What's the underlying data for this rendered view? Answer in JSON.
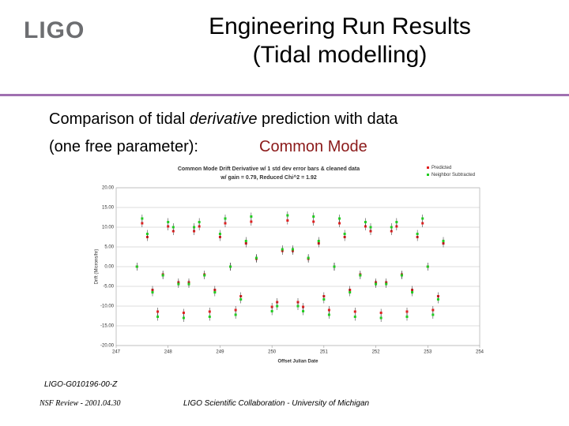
{
  "header": {
    "logo": "LIGO",
    "title": [
      "Engineering Run Results",
      "(Tidal modelling)"
    ]
  },
  "body": {
    "line1": [
      "Comparison of tidal ",
      "derivative",
      " prediction with data"
    ],
    "line2": "(one free parameter):",
    "highlight": "Common Mode"
  },
  "chart_data": {
    "type": "scatter",
    "title": [
      "Common Mode Drift Derivative w/ 1 std dev error bars & cleaned data",
      "w/ gain = 0.79, Reduced Chi^2 = 1.92"
    ],
    "xlabel": "Offset Julian Date",
    "ylabel": "Drift (Microns/hr)",
    "xlim": [
      247,
      254
    ],
    "xticks": [
      247,
      248,
      249,
      250,
      251,
      252,
      253,
      254
    ],
    "ylim": [
      -20,
      20
    ],
    "yticks": [
      {
        "value": -20,
        "label": "-20.00"
      },
      {
        "value": -15,
        "label": "-15.00"
      },
      {
        "value": -10,
        "label": "-10.00"
      },
      {
        "value": -5,
        "label": "-5.00"
      },
      {
        "value": 0,
        "label": "0.00"
      },
      {
        "value": 5,
        "label": "5.00"
      },
      {
        "value": 10,
        "label": "10.00"
      },
      {
        "value": 15,
        "label": "15.00"
      },
      {
        "value": 20,
        "label": "20.00"
      }
    ],
    "legend": "upper right",
    "x": [
      247.4,
      247.5,
      247.6,
      247.7,
      247.8,
      247.9,
      248.0,
      248.1,
      248.2,
      248.3,
      248.4,
      248.5,
      248.6,
      248.7,
      248.8,
      248.9,
      249.0,
      249.1,
      249.2,
      249.3,
      249.4,
      249.5,
      249.6,
      249.7,
      250.0,
      250.1,
      250.2,
      250.3,
      250.4,
      250.5,
      250.6,
      250.7,
      250.8,
      250.9,
      251.0,
      251.1,
      251.2,
      251.3,
      251.4,
      251.5,
      251.6,
      251.7,
      251.8,
      251.9,
      252.0,
      252.1,
      252.2,
      252.3,
      252.4,
      252.5,
      252.6,
      252.7,
      252.8,
      252.9,
      253.0,
      253.1,
      253.2,
      253.3
    ],
    "series": [
      {
        "name": "Predicted",
        "color": "#e02020",
        "values": [
          0,
          11,
          7.5,
          -5.9,
          -11.4,
          -2,
          10.2,
          9,
          -4,
          -11.7,
          -4,
          9,
          10.2,
          -2,
          -11.4,
          -5.9,
          7.5,
          11,
          0,
          -11,
          -7.5,
          5.9,
          11.4,
          2,
          -10.2,
          -9,
          4,
          11.7,
          4,
          -9,
          -10.2,
          2,
          11.4,
          5.9,
          -7.5,
          -11,
          0,
          11,
          7.5,
          -5.9,
          -11.4,
          -2,
          10.2,
          9,
          -4,
          -11.7,
          -4,
          9,
          10.2,
          -2,
          -11.4,
          -5.9,
          7.5,
          11,
          0,
          -11,
          -7.5,
          5.9
        ]
      },
      {
        "name": "Neighbor Subtracted",
        "color": "#22cc22",
        "values": [
          0,
          12.2,
          8.3,
          -6.5,
          -12.7,
          -2.2,
          11.3,
          10,
          -4.4,
          -13,
          -4.4,
          10,
          11.3,
          -2.2,
          -12.7,
          -6.5,
          8.3,
          12.2,
          0,
          -12.2,
          -8.3,
          6.5,
          12.7,
          2.2,
          -11.3,
          -10,
          4.4,
          13,
          4.4,
          -10,
          -11.3,
          2.2,
          12.7,
          6.5,
          -8.3,
          -12.2,
          0,
          12.2,
          8.3,
          -6.5,
          -12.7,
          -2.2,
          11.3,
          10,
          -4.4,
          -13,
          -4.4,
          10,
          11.3,
          -2.2,
          -12.7,
          -6.5,
          8.3,
          12.2,
          0,
          -12.2,
          -8.3,
          6.5
        ]
      }
    ]
  },
  "footer": {
    "doc_id": "LIGO-G010196-00-Z",
    "left": "NSF Review - 2001.04.30",
    "right": "LIGO Scientific Collaboration - University of Michigan"
  }
}
